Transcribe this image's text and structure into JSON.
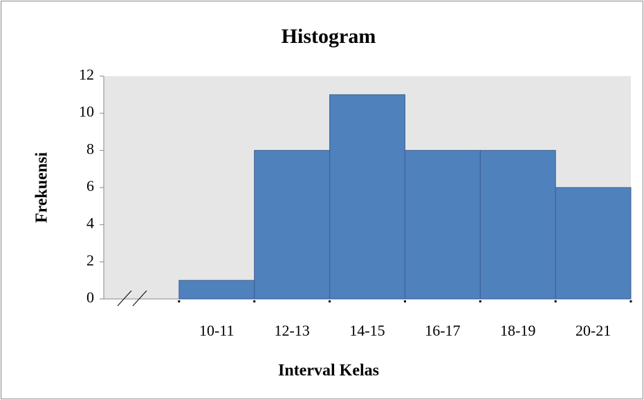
{
  "chart_data": {
    "type": "bar",
    "title": "Histogram",
    "x_label": "Interval Kelas",
    "y_label": "Frekuensi",
    "categories": [
      null,
      "10-11",
      "12-13",
      "14-15",
      "16-17",
      "18-19",
      "20-21"
    ],
    "values": [
      null,
      1,
      8,
      11,
      8,
      8,
      6
    ],
    "color": "#4f81bd",
    "ylim": [
      0,
      12
    ],
    "yticks": [
      0,
      2,
      4,
      6,
      8,
      10,
      12
    ],
    "grid": false
  }
}
